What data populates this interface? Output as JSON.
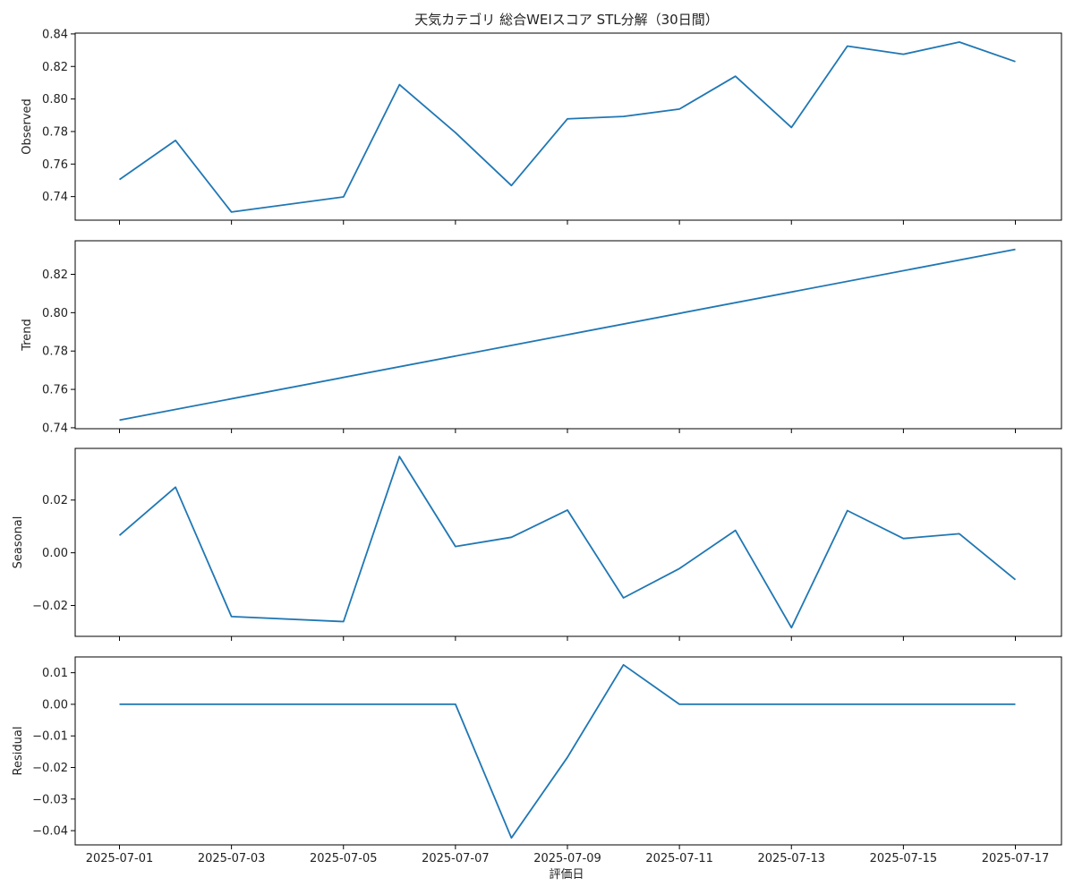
{
  "figure": {
    "title": "天気カテゴリ 総合WEIスコア STL分解（30日間）",
    "xlabel": "評価日"
  },
  "colors": {
    "line": "#1f77b4",
    "axes": "#000000",
    "text": "#222222"
  },
  "chart_data": {
    "type": "line",
    "title": "天気カテゴリ 総合WEIスコア STL分解（30日間）",
    "xlabel": "評価日",
    "x_tick_labels": [
      "2025-07-01",
      "2025-07-03",
      "2025-07-05",
      "2025-07-07",
      "2025-07-09",
      "2025-07-11",
      "2025-07-13",
      "2025-07-15",
      "2025-07-17"
    ],
    "grid": false,
    "legend": "none",
    "panels": [
      {
        "ylabel": "Observed",
        "ylim": [
          0.7255,
          0.8405
        ],
        "y_ticks": [
          0.74,
          0.76,
          0.78,
          0.8,
          0.82,
          0.84
        ],
        "y_tick_labels": [
          "0.74",
          "0.76",
          "0.78",
          "0.80",
          "0.82",
          "0.84"
        ],
        "x": [
          "2025-07-01",
          "2025-07-02",
          "2025-07-03",
          "2025-07-05",
          "2025-07-06",
          "2025-07-07",
          "2025-07-08",
          "2025-07-09",
          "2025-07-10",
          "2025-07-11",
          "2025-07-12",
          "2025-07-13",
          "2025-07-14",
          "2025-07-15",
          "2025-07-16",
          "2025-07-17"
        ],
        "values": [
          0.7505,
          0.7745,
          0.7305,
          0.7398,
          0.8088,
          0.7793,
          0.7468,
          0.7878,
          0.7893,
          0.7938,
          0.814,
          0.7825,
          0.8325,
          0.8275,
          0.835,
          0.823
        ]
      },
      {
        "ylabel": "Trend",
        "ylim": [
          0.7395,
          0.8375
        ],
        "y_ticks": [
          0.74,
          0.76,
          0.78,
          0.8,
          0.82
        ],
        "y_tick_labels": [
          "0.74",
          "0.76",
          "0.78",
          "0.80",
          "0.82"
        ],
        "x": [
          "2025-07-01",
          "2025-07-17"
        ],
        "values": [
          0.744,
          0.833
        ]
      },
      {
        "ylabel": "Seasonal",
        "ylim": [
          -0.0317,
          0.0396
        ],
        "y_ticks": [
          -0.02,
          0.0,
          0.02
        ],
        "y_tick_labels": [
          "−0.02",
          "0.00",
          "0.02"
        ],
        "x": [
          "2025-07-01",
          "2025-07-02",
          "2025-07-03",
          "2025-07-05",
          "2025-07-06",
          "2025-07-07",
          "2025-07-08",
          "2025-07-09",
          "2025-07-10",
          "2025-07-11",
          "2025-07-12",
          "2025-07-13",
          "2025-07-14",
          "2025-07-15",
          "2025-07-16",
          "2025-07-17"
        ],
        "values": [
          0.0066,
          0.0249,
          -0.0242,
          -0.0261,
          0.0365,
          0.0024,
          0.0059,
          0.0162,
          -0.0171,
          -0.006,
          0.0085,
          -0.0284,
          0.016,
          0.0054,
          0.0072,
          -0.0102
        ]
      },
      {
        "ylabel": "Residual",
        "ylim": [
          -0.0445,
          0.015
        ],
        "y_ticks": [
          -0.04,
          -0.03,
          -0.02,
          -0.01,
          0.0,
          0.01
        ],
        "y_tick_labels": [
          "−0.04",
          "−0.03",
          "−0.02",
          "−0.01",
          "0.00",
          "0.01"
        ],
        "x": [
          "2025-07-01",
          "2025-07-07",
          "2025-07-08",
          "2025-07-09",
          "2025-07-10",
          "2025-07-11",
          "2025-07-17"
        ],
        "values": [
          0.0,
          0.0,
          -0.0423,
          -0.0168,
          0.0125,
          0.0,
          0.0
        ]
      }
    ]
  }
}
